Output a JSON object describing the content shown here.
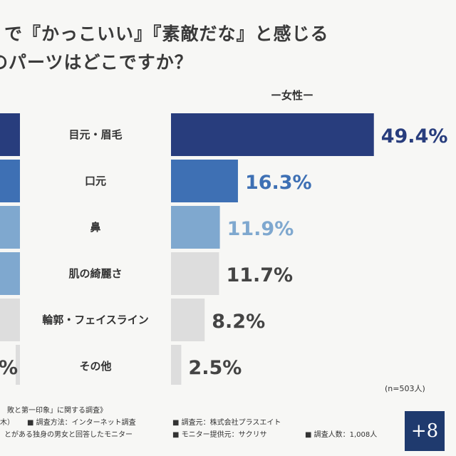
{
  "title": {
    "line1": "で『かっこいい』『素敵だな』と感じる",
    "line2": "のパーツはどこですか？"
  },
  "chart_data": {
    "type": "bar",
    "orientation": "horizontal",
    "categories": [
      "目元・眉毛",
      "口元",
      "鼻",
      "肌の綺麗さ",
      "輪郭・フェイスライン",
      "その他"
    ],
    "series": [
      {
        "name": "ー女性ー",
        "values": [
          49.4,
          16.3,
          11.9,
          11.7,
          8.2,
          2.5
        ],
        "value_labels": [
          "49.4%",
          "16.3%",
          "11.9%",
          "11.7%",
          "8.2%",
          "2.5%"
        ]
      }
    ],
    "xlim": [
      0,
      55
    ],
    "grid": false,
    "left_partial_value_label": "%"
  },
  "colors": {
    "dark_navy": "#283d7d",
    "mid_blue": "#3e70b4",
    "light_blue": "#7fa8cf",
    "gray": "#dddddd",
    "value_gray": "#444444"
  },
  "sample_note": "(n=503人)",
  "footer": {
    "line1": "敗と第一印象」に関する調査》",
    "line2_left": "木）",
    "method": "■ 調査方法：インターネット調査",
    "org": "■ 調査元：株式会社プラスエイト",
    "line3_left": "とがある独身の男女と回答したモニター",
    "monitor": "■ モニター提供元：サクリサ",
    "count": "■ 調査人数：1,008人"
  },
  "logo": {
    "text": "+8"
  }
}
